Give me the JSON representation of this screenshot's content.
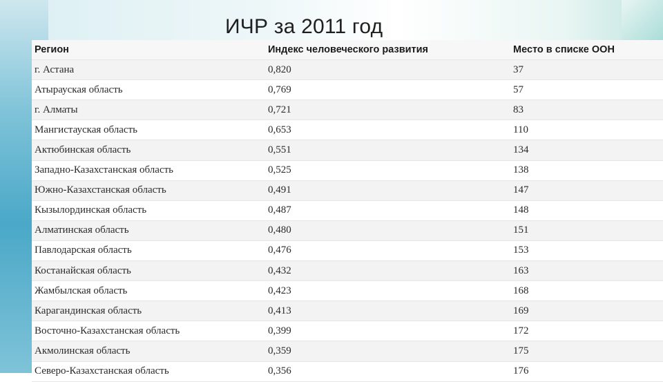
{
  "title": "ИЧР за 2011 год",
  "table": {
    "headers": [
      "Регион",
      "Индекс человеческого развития",
      "Место в списке ООН"
    ],
    "rows": [
      [
        "г. Астана",
        "0,820",
        "37"
      ],
      [
        "Атырауская область",
        "0,769",
        "57"
      ],
      [
        "г. Алматы",
        "0,721",
        "83"
      ],
      [
        "Мангистауская область",
        "0,653",
        "110"
      ],
      [
        "Актюбинская область",
        "0,551",
        "134"
      ],
      [
        "Западно-Казахстанская область",
        "0,525",
        "138"
      ],
      [
        "Южно-Казахстанская область",
        "0,491",
        "147"
      ],
      [
        "Кызылординская область",
        "0,487",
        "148"
      ],
      [
        "Алматинская область",
        "0,480",
        "151"
      ],
      [
        "Павлодарская область",
        "0,476",
        "153"
      ],
      [
        "Костанайская область",
        "0,432",
        "163"
      ],
      [
        "Жамбылская область",
        "0,423",
        "168"
      ],
      [
        "Карагандинская область",
        "0,413",
        "169"
      ],
      [
        "Восточно-Казахстанская область",
        "0,399",
        "172"
      ],
      [
        "Акмолинская область",
        "0,359",
        "175"
      ],
      [
        "Северо-Казахстанская область",
        "0,356",
        "176"
      ]
    ]
  }
}
